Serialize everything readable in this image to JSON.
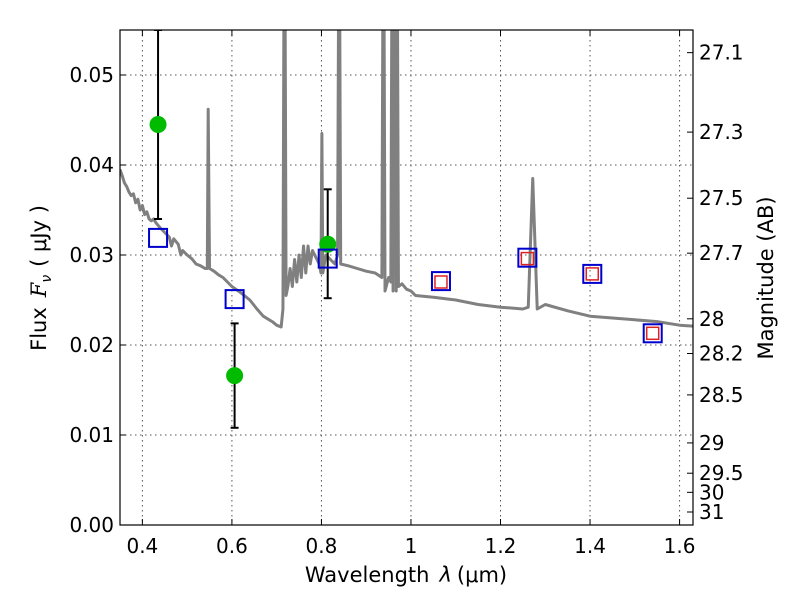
{
  "chart_data": {
    "type": "scatter",
    "xlabel_text": "Wavelength",
    "xlabel_symbol": "λ",
    "xlabel_units": "(μm)",
    "ylabel_text": "Flux",
    "ylabel_symbol": "F",
    "ylabel_subscript": "ν",
    "ylabel_units": "( μJy )",
    "y2label": "Magnitude (AB)",
    "xlim": [
      0.35,
      1.63
    ],
    "ylim": [
      0.0,
      0.055
    ],
    "grid": true,
    "x_ticks": [
      0.4,
      0.6,
      0.8,
      1.0,
      1.2,
      1.4,
      1.6
    ],
    "x_tick_labels": [
      "0.4",
      "0.6",
      "0.8",
      "1",
      "1.2",
      "1.4",
      "1.6"
    ],
    "y_ticks": [
      0.0,
      0.01,
      0.02,
      0.03,
      0.04,
      0.05
    ],
    "y_tick_labels": [
      "0.00",
      "0.01",
      "0.02",
      "0.03",
      "0.04",
      "0.05"
    ],
    "y2_ticks": [
      27.1,
      27.3,
      27.5,
      27.7,
      28,
      28.2,
      28.5,
      29,
      29.5,
      30,
      31
    ],
    "y2_tick_labels": [
      "27.1",
      "27.3",
      "27.5",
      "27.7",
      "28",
      "28.2",
      "28.5",
      "29",
      "29.5",
      "30",
      "31"
    ],
    "series": [
      {
        "name": "model-spectrum",
        "kind": "line",
        "color": "#808080",
        "points": [
          [
            0.35,
            0.0395
          ],
          [
            0.355,
            0.0388
          ],
          [
            0.36,
            0.038
          ],
          [
            0.365,
            0.0376
          ],
          [
            0.37,
            0.037
          ],
          [
            0.375,
            0.0366
          ],
          [
            0.38,
            0.0368
          ],
          [
            0.385,
            0.0358
          ],
          [
            0.39,
            0.0362
          ],
          [
            0.395,
            0.035
          ],
          [
            0.4,
            0.0355
          ],
          [
            0.405,
            0.0345
          ],
          [
            0.41,
            0.0348
          ],
          [
            0.415,
            0.034
          ],
          [
            0.42,
            0.0338
          ],
          [
            0.425,
            0.034
          ],
          [
            0.43,
            0.0336
          ],
          [
            0.435,
            0.0333
          ],
          [
            0.44,
            0.033
          ],
          [
            0.45,
            0.0325
          ],
          [
            0.46,
            0.032
          ],
          [
            0.465,
            0.031
          ],
          [
            0.47,
            0.0318
          ],
          [
            0.48,
            0.0312
          ],
          [
            0.486,
            0.03
          ],
          [
            0.49,
            0.0305
          ],
          [
            0.5,
            0.03
          ],
          [
            0.51,
            0.0296
          ],
          [
            0.52,
            0.029
          ],
          [
            0.53,
            0.0288
          ],
          [
            0.54,
            0.0285
          ],
          [
            0.545,
            0.0285
          ],
          [
            0.547,
            0.0462
          ],
          [
            0.55,
            0.0285
          ],
          [
            0.56,
            0.0282
          ],
          [
            0.57,
            0.0278
          ],
          [
            0.58,
            0.0275
          ],
          [
            0.59,
            0.027
          ],
          [
            0.6,
            0.0265
          ],
          [
            0.62,
            0.0258
          ],
          [
            0.64,
            0.025
          ],
          [
            0.656,
            0.024
          ],
          [
            0.67,
            0.0232
          ],
          [
            0.69,
            0.0226
          ],
          [
            0.7,
            0.0222
          ],
          [
            0.71,
            0.022
          ],
          [
            0.714,
            0.024
          ],
          [
            0.716,
            0.055
          ],
          [
            0.719,
            0.055
          ],
          [
            0.721,
            0.0255
          ],
          [
            0.725,
            0.0265
          ],
          [
            0.73,
            0.0285
          ],
          [
            0.735,
            0.0265
          ],
          [
            0.74,
            0.0295
          ],
          [
            0.745,
            0.027
          ],
          [
            0.75,
            0.03
          ],
          [
            0.755,
            0.0275
          ],
          [
            0.76,
            0.031
          ],
          [
            0.765,
            0.028
          ],
          [
            0.77,
            0.031
          ],
          [
            0.775,
            0.029
          ],
          [
            0.78,
            0.0305
          ],
          [
            0.785,
            0.03
          ],
          [
            0.79,
            0.0295
          ],
          [
            0.795,
            0.029
          ],
          [
            0.799,
            0.028
          ],
          [
            0.801,
            0.0435
          ],
          [
            0.803,
            0.028
          ],
          [
            0.81,
            0.03
          ],
          [
            0.82,
            0.0295
          ],
          [
            0.83,
            0.029
          ],
          [
            0.836,
            0.03
          ],
          [
            0.838,
            0.055
          ],
          [
            0.841,
            0.055
          ],
          [
            0.843,
            0.029
          ],
          [
            0.86,
            0.0288
          ],
          [
            0.88,
            0.0285
          ],
          [
            0.9,
            0.0282
          ],
          [
            0.92,
            0.028
          ],
          [
            0.935,
            0.0275
          ],
          [
            0.937,
            0.055
          ],
          [
            0.94,
            0.055
          ],
          [
            0.942,
            0.026
          ],
          [
            0.95,
            0.0275
          ],
          [
            0.955,
            0.027
          ],
          [
            0.957,
            0.055
          ],
          [
            0.96,
            0.026
          ],
          [
            0.962,
            0.055
          ],
          [
            0.965,
            0.055
          ],
          [
            0.967,
            0.026
          ],
          [
            0.968,
            0.055
          ],
          [
            0.97,
            0.055
          ],
          [
            0.972,
            0.0265
          ],
          [
            0.98,
            0.0268
          ],
          [
            0.99,
            0.0262
          ],
          [
            1.0,
            0.026
          ],
          [
            1.01,
            0.0255
          ],
          [
            1.05,
            0.0253
          ],
          [
            1.1,
            0.025
          ],
          [
            1.15,
            0.0245
          ],
          [
            1.2,
            0.0242
          ],
          [
            1.25,
            0.024
          ],
          [
            1.262,
            0.0242
          ],
          [
            1.272,
            0.0385
          ],
          [
            1.282,
            0.024
          ],
          [
            1.3,
            0.0245
          ],
          [
            1.35,
            0.0238
          ],
          [
            1.4,
            0.0232
          ],
          [
            1.45,
            0.023
          ],
          [
            1.5,
            0.0228
          ],
          [
            1.55,
            0.0226
          ],
          [
            1.6,
            0.0222
          ],
          [
            1.63,
            0.0221
          ]
        ]
      },
      {
        "name": "observed",
        "kind": "errorbar",
        "color": "#00bb00",
        "points": [
          {
            "x": 0.435,
            "y": 0.0445,
            "ylo": 0.034,
            "yhi": 0.055
          },
          {
            "x": 0.606,
            "y": 0.0166,
            "ylo": 0.0108,
            "yhi": 0.0224
          },
          {
            "x": 0.814,
            "y": 0.0312,
            "ylo": 0.0252,
            "yhi": 0.0373
          }
        ]
      },
      {
        "name": "model-photometry",
        "kind": "square",
        "color": "#0000cc",
        "points": [
          [
            0.435,
            0.0319
          ],
          [
            0.606,
            0.0251
          ],
          [
            0.814,
            0.0296
          ],
          [
            1.067,
            0.0271
          ],
          [
            1.26,
            0.0297
          ],
          [
            1.405,
            0.0279
          ],
          [
            1.54,
            0.0213
          ]
        ]
      },
      {
        "name": "model-photometry-ir",
        "kind": "square-small",
        "color": "#dd2222",
        "points": [
          [
            1.067,
            0.027
          ],
          [
            1.26,
            0.0296
          ],
          [
            1.405,
            0.0279
          ],
          [
            1.54,
            0.0213
          ]
        ]
      }
    ]
  }
}
